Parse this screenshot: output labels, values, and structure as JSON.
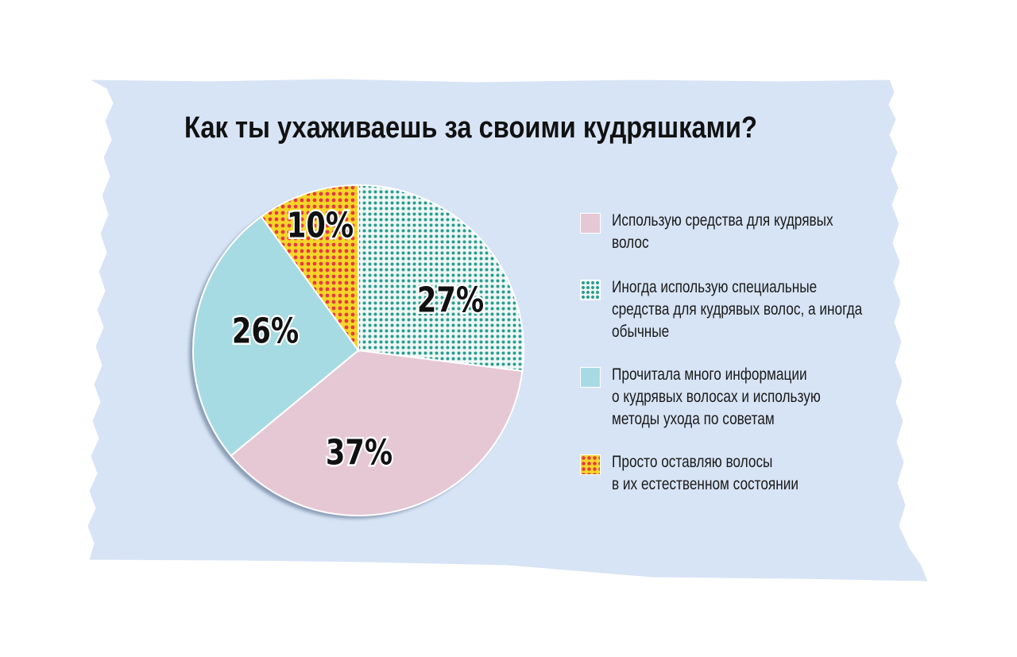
{
  "chart_data": {
    "type": "pie",
    "title": "Как ты ухаживаешь за своими кудряшками?",
    "slices": [
      {
        "label": "Использую средства для кудрявых волос",
        "value": 37,
        "display": "37%",
        "color": "#e6c8d4",
        "pattern": "solid"
      },
      {
        "label": "Иногда использую специальные средства для кудрявых волос, а иногда обычные",
        "value": 27,
        "display": "27%",
        "color": "#2a9d8f",
        "pattern": "dots-teal"
      },
      {
        "label": "Прочитала много информации о кудрявых волосах и использую методы ухода по советам",
        "value": 26,
        "display": "26%",
        "color": "#a7dbe3",
        "pattern": "solid"
      },
      {
        "label": "Просто оставляю волосы в их естественном состоянии",
        "value": 10,
        "display": "10%",
        "color": "#e23d3d",
        "pattern": "dots-red-on-yellow"
      }
    ],
    "legend_position": "right"
  },
  "legend": {
    "items": [
      {
        "lines": [
          "Использую средства для кудрявых",
          "волос"
        ]
      },
      {
        "lines": [
          "Иногда использую специальные",
          "средства для кудрявых волос, а иногда",
          "обычные"
        ]
      },
      {
        "lines": [
          "Прочитала много информации",
          "о кудрявых волосах и использую",
          "методы ухода по советам"
        ]
      },
      {
        "lines": [
          "Просто оставляю волосы",
          "в их естественном состоянии"
        ]
      }
    ]
  },
  "colors": {
    "background_paper": "#d7e4f5",
    "pink": "#e6c8d4",
    "teal_dot": "#2a9d8f",
    "light_blue": "#a7dbe3",
    "yellow": "#f5d52a",
    "red_dot": "#e23d3d"
  }
}
